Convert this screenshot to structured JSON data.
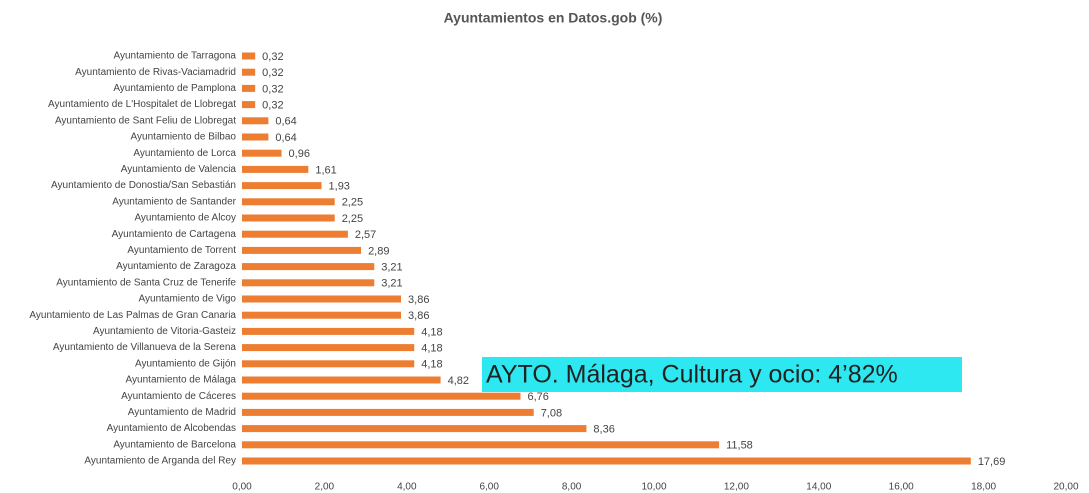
{
  "chart_data": {
    "type": "bar",
    "orientation": "horizontal",
    "title": "Ayuntamientos en Datos.gob (%)",
    "categories": [
      "Ayuntamiento de Tarragona",
      "Ayuntamiento de Rivas-Vaciamadrid",
      "Ayuntamiento de Pamplona",
      "Ayuntamiento de L'Hospitalet de Llobregat",
      "Ayuntamiento de Sant Feliu de Llobregat",
      "Ayuntamiento de Bilbao",
      "Ayuntamiento de Lorca",
      "Ayuntamiento de Valencia",
      "Ayuntamiento de Donostia/San Sebastián",
      "Ayuntamiento de Santander",
      "Ayuntamiento de Alcoy",
      "Ayuntamiento de Cartagena",
      "Ayuntamiento de Torrent",
      "Ayuntamiento de Zaragoza",
      "Ayuntamiento de Santa Cruz de Tenerife",
      "Ayuntamiento de Vigo",
      "Ayuntamiento de Las Palmas de Gran Canaria",
      "Ayuntamiento de Vitoria-Gasteiz",
      "Ayuntamiento de Villanueva de la Serena",
      "Ayuntamiento de Gijón",
      "Ayuntamiento de Málaga",
      "Ayuntamiento de Cáceres",
      "Ayuntamiento de Madrid",
      "Ayuntamiento de Alcobendas",
      "Ayuntamiento de Barcelona",
      "Ayuntamiento de Arganda del Rey"
    ],
    "values": [
      0.32,
      0.32,
      0.32,
      0.32,
      0.64,
      0.64,
      0.96,
      1.61,
      1.93,
      2.25,
      2.25,
      2.57,
      2.89,
      3.21,
      3.21,
      3.86,
      3.86,
      4.18,
      4.18,
      4.18,
      4.82,
      6.76,
      7.08,
      8.36,
      11.58,
      17.69
    ],
    "value_labels": [
      "0,32",
      "0,32",
      "0,32",
      "0,32",
      "0,64",
      "0,64",
      "0,96",
      "1,61",
      "1,93",
      "2,25",
      "2,25",
      "2,57",
      "2,89",
      "3,21",
      "3,21",
      "3,86",
      "3,86",
      "4,18",
      "4,18",
      "4,18",
      "4,82",
      "6,76",
      "7,08",
      "8,36",
      "11,58",
      "17,69"
    ],
    "color": "#ed7d31",
    "xlim": [
      0,
      20
    ],
    "xticks": [
      {
        "value": 0,
        "label": "0,00"
      },
      {
        "value": 2,
        "label": "2,00"
      },
      {
        "value": 4,
        "label": "4,00"
      },
      {
        "value": 6,
        "label": "6,00"
      },
      {
        "value": 8,
        "label": "8,00"
      },
      {
        "value": 10,
        "label": "10,00"
      },
      {
        "value": 12,
        "label": "12,00"
      },
      {
        "value": 14,
        "label": "14,00"
      },
      {
        "value": 16,
        "label": "16,00"
      },
      {
        "value": 18,
        "label": "18,00"
      },
      {
        "value": 20,
        "label": "20,00"
      }
    ],
    "annotation": "AYTO. Málaga, Cultura y ocio: 4’82%"
  }
}
